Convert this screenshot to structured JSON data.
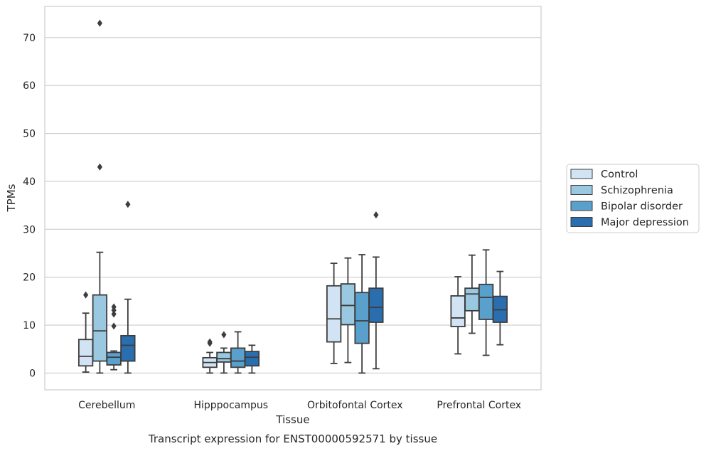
{
  "chart_data": {
    "type": "box",
    "title": "",
    "caption": "Transcript expression for ENST00000592571 by tissue",
    "xlabel": "Tissue",
    "ylabel": "TPMs",
    "ylim": [
      -3.5,
      76.5
    ],
    "yticks": [
      0,
      10,
      20,
      30,
      40,
      50,
      60,
      70
    ],
    "grid": "horizontal",
    "legend_position": "right-outside",
    "categories": [
      "Cerebellum",
      "Hipppocampus",
      "Orbitofontal Cortex",
      "Prefrontal Cortex"
    ],
    "series": [
      {
        "name": "Control",
        "color": "#d2e3f3",
        "boxes": [
          {
            "whislo": 0.2,
            "q1": 1.5,
            "med": 3.5,
            "q3": 7.0,
            "whishi": 12.5,
            "fliers": [
              16.3
            ]
          },
          {
            "whislo": 0.0,
            "q1": 1.2,
            "med": 2.2,
            "q3": 3.2,
            "whishi": 4.3,
            "fliers": [
              6.2,
              6.5
            ]
          },
          {
            "whislo": 2.0,
            "q1": 6.5,
            "med": 11.3,
            "q3": 18.2,
            "whishi": 22.9,
            "fliers": []
          },
          {
            "whislo": 4.0,
            "q1": 9.7,
            "med": 11.5,
            "q3": 16.1,
            "whishi": 20.1,
            "fliers": []
          }
        ]
      },
      {
        "name": "Schizophrenia",
        "color": "#9ac8e0",
        "boxes": [
          {
            "whislo": 0.0,
            "q1": 2.5,
            "med": 8.8,
            "q3": 16.3,
            "whishi": 25.2,
            "fliers": [
              43.0,
              73.0
            ]
          },
          {
            "whislo": 0.0,
            "q1": 2.3,
            "med": 3.0,
            "q3": 4.3,
            "whishi": 5.2,
            "fliers": [
              8.0
            ]
          },
          {
            "whislo": 2.2,
            "q1": 10.1,
            "med": 14.1,
            "q3": 18.6,
            "whishi": 24.0,
            "fliers": []
          },
          {
            "whislo": 8.3,
            "q1": 13.0,
            "med": 16.5,
            "q3": 17.7,
            "whishi": 24.6,
            "fliers": []
          }
        ]
      },
      {
        "name": "Bipolar disorder",
        "color": "#5aa0cd",
        "boxes": [
          {
            "whislo": 0.7,
            "q1": 1.7,
            "med": 3.3,
            "q3": 4.3,
            "whishi": 4.6,
            "fliers": [
              9.8,
              12.3,
              13.1,
              13.8
            ]
          },
          {
            "whislo": 0.0,
            "q1": 1.2,
            "med": 2.5,
            "q3": 5.2,
            "whishi": 8.6,
            "fliers": []
          },
          {
            "whislo": 0.0,
            "q1": 6.2,
            "med": 10.9,
            "q3": 16.8,
            "whishi": 24.7,
            "fliers": []
          },
          {
            "whislo": 3.7,
            "q1": 11.2,
            "med": 15.8,
            "q3": 18.5,
            "whishi": 25.7,
            "fliers": []
          }
        ]
      },
      {
        "name": "Major depression",
        "color": "#2a6eb0",
        "boxes": [
          {
            "whislo": 0.0,
            "q1": 2.5,
            "med": 5.8,
            "q3": 7.8,
            "whishi": 15.4,
            "fliers": [
              35.2
            ]
          },
          {
            "whislo": 0.0,
            "q1": 1.5,
            "med": 3.3,
            "q3": 4.5,
            "whishi": 5.8,
            "fliers": []
          },
          {
            "whislo": 0.9,
            "q1": 10.6,
            "med": 13.7,
            "q3": 17.7,
            "whishi": 24.2,
            "fliers": [
              33.0
            ]
          },
          {
            "whislo": 5.9,
            "q1": 10.6,
            "med": 13.2,
            "q3": 16.0,
            "whishi": 21.2,
            "fliers": []
          }
        ]
      }
    ]
  }
}
